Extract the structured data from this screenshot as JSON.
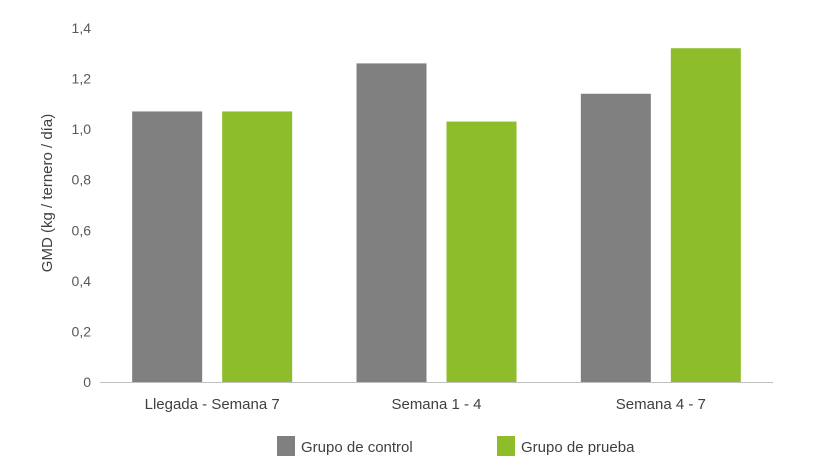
{
  "chart_data": {
    "type": "bar",
    "title": "",
    "xlabel": "",
    "ylabel": "GMD (kg / ternero / día)",
    "categories": [
      "Llegada - Semana 7",
      "Semana 1 - 4",
      "Semana 4 - 7"
    ],
    "series": [
      {
        "name": "Grupo de control",
        "values": [
          1.07,
          1.26,
          1.14
        ],
        "color": "#808080"
      },
      {
        "name": "Grupo de prueba",
        "values": [
          1.07,
          1.03,
          1.32
        ],
        "color": "#8dbd2a"
      }
    ],
    "ylim": [
      0,
      1.4
    ],
    "yticks": [
      "0",
      "0,2",
      "0,4",
      "0,6",
      "0,8",
      "1,0",
      "1,2",
      "1,4"
    ],
    "grid": false,
    "legend_position": "bottom"
  }
}
